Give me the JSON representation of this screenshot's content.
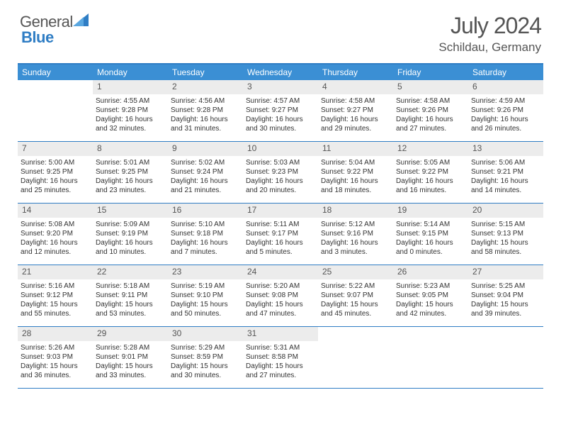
{
  "brand": {
    "word1": "General",
    "word2": "Blue"
  },
  "title": "July 2024",
  "location": "Schildau, Germany",
  "colors": {
    "accent": "#3b8fd4",
    "border": "#2f7dc4",
    "daynum_bg": "#ececec",
    "text_dark": "#333333",
    "text_mid": "#555555"
  },
  "weekdays": [
    "Sunday",
    "Monday",
    "Tuesday",
    "Wednesday",
    "Thursday",
    "Friday",
    "Saturday"
  ],
  "weeks": [
    [
      null,
      {
        "n": "1",
        "sr": "4:55 AM",
        "ss": "9:28 PM",
        "dl": "16 hours and 32 minutes."
      },
      {
        "n": "2",
        "sr": "4:56 AM",
        "ss": "9:28 PM",
        "dl": "16 hours and 31 minutes."
      },
      {
        "n": "3",
        "sr": "4:57 AM",
        "ss": "9:27 PM",
        "dl": "16 hours and 30 minutes."
      },
      {
        "n": "4",
        "sr": "4:58 AM",
        "ss": "9:27 PM",
        "dl": "16 hours and 29 minutes."
      },
      {
        "n": "5",
        "sr": "4:58 AM",
        "ss": "9:26 PM",
        "dl": "16 hours and 27 minutes."
      },
      {
        "n": "6",
        "sr": "4:59 AM",
        "ss": "9:26 PM",
        "dl": "16 hours and 26 minutes."
      }
    ],
    [
      {
        "n": "7",
        "sr": "5:00 AM",
        "ss": "9:25 PM",
        "dl": "16 hours and 25 minutes."
      },
      {
        "n": "8",
        "sr": "5:01 AM",
        "ss": "9:25 PM",
        "dl": "16 hours and 23 minutes."
      },
      {
        "n": "9",
        "sr": "5:02 AM",
        "ss": "9:24 PM",
        "dl": "16 hours and 21 minutes."
      },
      {
        "n": "10",
        "sr": "5:03 AM",
        "ss": "9:23 PM",
        "dl": "16 hours and 20 minutes."
      },
      {
        "n": "11",
        "sr": "5:04 AM",
        "ss": "9:22 PM",
        "dl": "16 hours and 18 minutes."
      },
      {
        "n": "12",
        "sr": "5:05 AM",
        "ss": "9:22 PM",
        "dl": "16 hours and 16 minutes."
      },
      {
        "n": "13",
        "sr": "5:06 AM",
        "ss": "9:21 PM",
        "dl": "16 hours and 14 minutes."
      }
    ],
    [
      {
        "n": "14",
        "sr": "5:08 AM",
        "ss": "9:20 PM",
        "dl": "16 hours and 12 minutes."
      },
      {
        "n": "15",
        "sr": "5:09 AM",
        "ss": "9:19 PM",
        "dl": "16 hours and 10 minutes."
      },
      {
        "n": "16",
        "sr": "5:10 AM",
        "ss": "9:18 PM",
        "dl": "16 hours and 7 minutes."
      },
      {
        "n": "17",
        "sr": "5:11 AM",
        "ss": "9:17 PM",
        "dl": "16 hours and 5 minutes."
      },
      {
        "n": "18",
        "sr": "5:12 AM",
        "ss": "9:16 PM",
        "dl": "16 hours and 3 minutes."
      },
      {
        "n": "19",
        "sr": "5:14 AM",
        "ss": "9:15 PM",
        "dl": "16 hours and 0 minutes."
      },
      {
        "n": "20",
        "sr": "5:15 AM",
        "ss": "9:13 PM",
        "dl": "15 hours and 58 minutes."
      }
    ],
    [
      {
        "n": "21",
        "sr": "5:16 AM",
        "ss": "9:12 PM",
        "dl": "15 hours and 55 minutes."
      },
      {
        "n": "22",
        "sr": "5:18 AM",
        "ss": "9:11 PM",
        "dl": "15 hours and 53 minutes."
      },
      {
        "n": "23",
        "sr": "5:19 AM",
        "ss": "9:10 PM",
        "dl": "15 hours and 50 minutes."
      },
      {
        "n": "24",
        "sr": "5:20 AM",
        "ss": "9:08 PM",
        "dl": "15 hours and 47 minutes."
      },
      {
        "n": "25",
        "sr": "5:22 AM",
        "ss": "9:07 PM",
        "dl": "15 hours and 45 minutes."
      },
      {
        "n": "26",
        "sr": "5:23 AM",
        "ss": "9:05 PM",
        "dl": "15 hours and 42 minutes."
      },
      {
        "n": "27",
        "sr": "5:25 AM",
        "ss": "9:04 PM",
        "dl": "15 hours and 39 minutes."
      }
    ],
    [
      {
        "n": "28",
        "sr": "5:26 AM",
        "ss": "9:03 PM",
        "dl": "15 hours and 36 minutes."
      },
      {
        "n": "29",
        "sr": "5:28 AM",
        "ss": "9:01 PM",
        "dl": "15 hours and 33 minutes."
      },
      {
        "n": "30",
        "sr": "5:29 AM",
        "ss": "8:59 PM",
        "dl": "15 hours and 30 minutes."
      },
      {
        "n": "31",
        "sr": "5:31 AM",
        "ss": "8:58 PM",
        "dl": "15 hours and 27 minutes."
      },
      null,
      null,
      null
    ]
  ],
  "labels": {
    "sunrise": "Sunrise:",
    "sunset": "Sunset:",
    "daylight": "Daylight:"
  }
}
